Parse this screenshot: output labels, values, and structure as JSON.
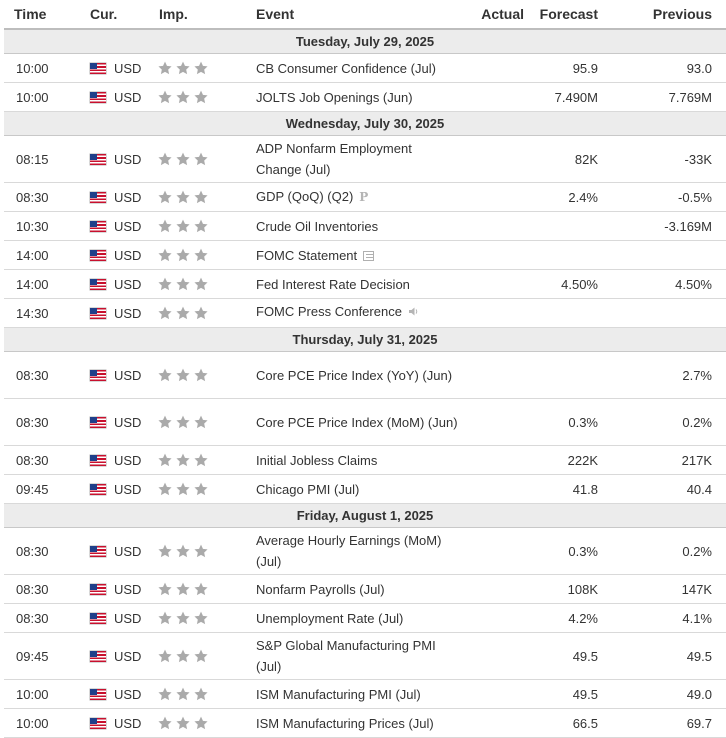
{
  "headers": {
    "time": "Time",
    "cur": "Cur.",
    "imp": "Imp.",
    "event": "Event",
    "actual": "Actual",
    "forecast": "Forecast",
    "previous": "Previous"
  },
  "days": [
    {
      "label": "Tuesday, July 29, 2025",
      "events": [
        {
          "time": "10:00",
          "cur": "USD",
          "event": "CB Consumer Confidence (Jul)",
          "icon": "",
          "actual": "",
          "forecast": "95.9",
          "previous": "93.0",
          "tall": false
        },
        {
          "time": "10:00",
          "cur": "USD",
          "event": "JOLTS Job Openings (Jun)",
          "icon": "",
          "actual": "",
          "forecast": "7.490M",
          "previous": "7.769M",
          "tall": false
        }
      ]
    },
    {
      "label": "Wednesday, July 30, 2025",
      "events": [
        {
          "time": "08:15",
          "cur": "USD",
          "event": "ADP Nonfarm Employment Change (Jul)",
          "icon": "",
          "actual": "",
          "forecast": "82K",
          "previous": "-33K",
          "tall": true
        },
        {
          "time": "08:30",
          "cur": "USD",
          "event": "GDP (QoQ) (Q2)",
          "icon": "preliminary-icon",
          "actual": "",
          "forecast": "2.4%",
          "previous": "-0.5%",
          "tall": false
        },
        {
          "time": "10:30",
          "cur": "USD",
          "event": "Crude Oil Inventories",
          "icon": "",
          "actual": "",
          "forecast": "",
          "previous": "-3.169M",
          "tall": false
        },
        {
          "time": "14:00",
          "cur": "USD",
          "event": "FOMC Statement",
          "icon": "document-icon",
          "actual": "",
          "forecast": "",
          "previous": "",
          "tall": false
        },
        {
          "time": "14:00",
          "cur": "USD",
          "event": "Fed Interest Rate Decision",
          "icon": "",
          "actual": "",
          "forecast": "4.50%",
          "previous": "4.50%",
          "tall": false
        },
        {
          "time": "14:30",
          "cur": "USD",
          "event": "FOMC Press Conference",
          "icon": "speaker-icon",
          "actual": "",
          "forecast": "",
          "previous": "",
          "tall": false
        }
      ]
    },
    {
      "label": "Thursday, July 31, 2025",
      "events": [
        {
          "time": "08:30",
          "cur": "USD",
          "event": "Core PCE Price Index (YoY) (Jun)",
          "icon": "",
          "actual": "",
          "forecast": "",
          "previous": "2.7%",
          "tall": true
        },
        {
          "time": "08:30",
          "cur": "USD",
          "event": "Core PCE Price Index (MoM) (Jun)",
          "icon": "",
          "actual": "",
          "forecast": "0.3%",
          "previous": "0.2%",
          "tall": true
        },
        {
          "time": "08:30",
          "cur": "USD",
          "event": "Initial Jobless Claims",
          "icon": "",
          "actual": "",
          "forecast": "222K",
          "previous": "217K",
          "tall": false
        },
        {
          "time": "09:45",
          "cur": "USD",
          "event": "Chicago PMI (Jul)",
          "icon": "",
          "actual": "",
          "forecast": "41.8",
          "previous": "40.4",
          "tall": false
        }
      ]
    },
    {
      "label": "Friday, August 1, 2025",
      "events": [
        {
          "time": "08:30",
          "cur": "USD",
          "event": "Average Hourly Earnings (MoM) (Jul)",
          "icon": "",
          "actual": "",
          "forecast": "0.3%",
          "previous": "0.2%",
          "tall": true
        },
        {
          "time": "08:30",
          "cur": "USD",
          "event": "Nonfarm Payrolls (Jul)",
          "icon": "",
          "actual": "",
          "forecast": "108K",
          "previous": "147K",
          "tall": false
        },
        {
          "time": "08:30",
          "cur": "USD",
          "event": "Unemployment Rate (Jul)",
          "icon": "",
          "actual": "",
          "forecast": "4.2%",
          "previous": "4.1%",
          "tall": false
        },
        {
          "time": "09:45",
          "cur": "USD",
          "event": "S&P Global Manufacturing PMI (Jul)",
          "icon": "",
          "actual": "",
          "forecast": "49.5",
          "previous": "49.5",
          "tall": true
        },
        {
          "time": "10:00",
          "cur": "USD",
          "event": "ISM Manufacturing PMI (Jul)",
          "icon": "",
          "actual": "",
          "forecast": "49.5",
          "previous": "49.0",
          "tall": false
        },
        {
          "time": "10:00",
          "cur": "USD",
          "event": "ISM Manufacturing Prices (Jul)",
          "icon": "",
          "actual": "",
          "forecast": "66.5",
          "previous": "69.7",
          "tall": false
        }
      ]
    }
  ],
  "importance_stars": 3,
  "colors": {
    "star": "#aaaaaa",
    "day_band": "#ececec",
    "row_border": "#d9d9d9"
  }
}
